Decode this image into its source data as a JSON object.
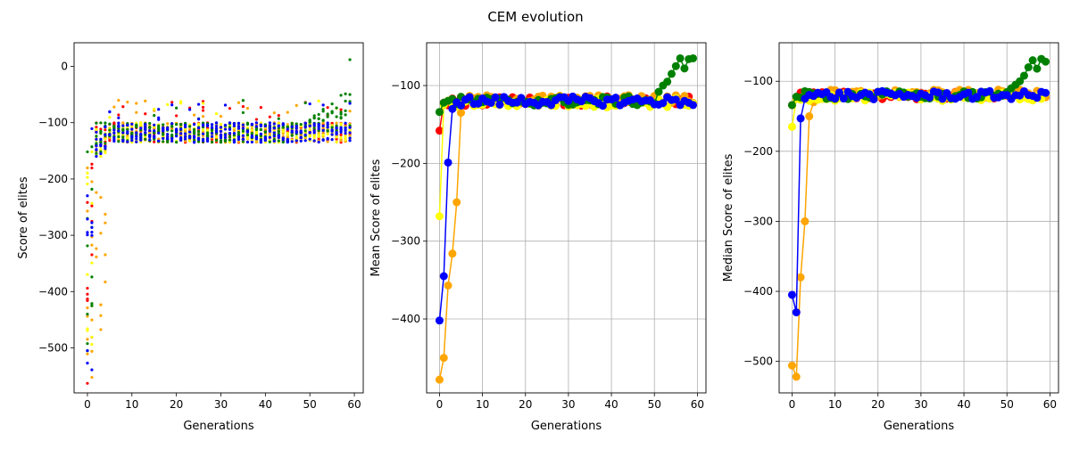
{
  "figure": {
    "suptitle": "CEM evolution"
  },
  "chart_data": [
    {
      "type": "scatter",
      "title": "",
      "xlabel": "Generations",
      "ylabel": "Score of elites",
      "xlim": [
        -3,
        62
      ],
      "ylim": [
        -580,
        42
      ],
      "xticks": [
        0,
        10,
        20,
        30,
        40,
        50,
        60
      ],
      "yticks": [
        0,
        -100,
        -200,
        -300,
        -400,
        -500
      ],
      "grid": false,
      "series": [
        {
          "color": "#ff0000",
          "description": "elite scores per generation"
        },
        {
          "color": "#ffa500",
          "description": "elite scores per generation"
        },
        {
          "color": "#ffff00",
          "description": "elite scores per generation"
        },
        {
          "color": "#008000",
          "description": "elite scores per generation"
        },
        {
          "color": "#0000ff",
          "description": "elite scores per generation"
        }
      ],
      "approx_distribution": {
        "generation_0_1_range": [
          -565,
          -100
        ],
        "plateau_gen_5_to_60": [
          -135,
          -100
        ],
        "green_rise_gen_50_to_59": [
          -100,
          12
        ]
      }
    },
    {
      "type": "line",
      "title": "",
      "xlabel": "Generations",
      "ylabel": "Mean Score of elites",
      "xlim": [
        -3,
        62
      ],
      "ylim": [
        -495,
        -45
      ],
      "xticks": [
        0,
        10,
        20,
        30,
        40,
        50,
        60
      ],
      "yticks": [
        -100,
        -200,
        -300,
        -400
      ],
      "grid": true,
      "series": [
        {
          "color": "#ff0000",
          "start": [
            -158,
            -122
          ],
          "plateau": -120
        },
        {
          "color": "#ffa500",
          "start": [
            -478,
            -450,
            -357,
            -316,
            -250,
            -135
          ],
          "plateau": -118
        },
        {
          "color": "#ffff00",
          "start": [
            -268,
            -125
          ],
          "plateau": -122
        },
        {
          "color": "#008000",
          "start": [
            -134,
            -122
          ],
          "plateau": -120,
          "end_rise": [
            -108,
            -100,
            -95,
            -85,
            -75,
            -65,
            -78,
            -66,
            -65
          ]
        },
        {
          "color": "#0000ff",
          "start": [
            -402,
            -345,
            -199,
            -130
          ],
          "plateau": -120
        }
      ]
    },
    {
      "type": "line",
      "title": "",
      "xlabel": "Generations",
      "ylabel": "Median Score of elites",
      "xlim": [
        -3,
        62
      ],
      "ylim": [
        -545,
        -45
      ],
      "xticks": [
        0,
        10,
        20,
        30,
        40,
        50,
        60
      ],
      "yticks": [
        -100,
        -200,
        -300,
        -400,
        -500
      ],
      "grid": true,
      "series": [
        {
          "color": "#ff0000",
          "start": [
            -134,
            -125
          ],
          "plateau": -120
        },
        {
          "color": "#ffa500",
          "start": [
            -506,
            -522,
            -380,
            -300,
            -150,
            -130
          ],
          "plateau": -118
        },
        {
          "color": "#ffff00",
          "start": [
            -165,
            -125
          ],
          "plateau": -122
        },
        {
          "color": "#008000",
          "start": [
            -134,
            -122
          ],
          "plateau": -120,
          "end_rise": [
            -110,
            -105,
            -100,
            -92,
            -80,
            -70,
            -82,
            -68,
            -72
          ]
        },
        {
          "color": "#0000ff",
          "start": [
            -405,
            -430,
            -153,
            -125
          ],
          "plateau": -120
        }
      ]
    }
  ]
}
